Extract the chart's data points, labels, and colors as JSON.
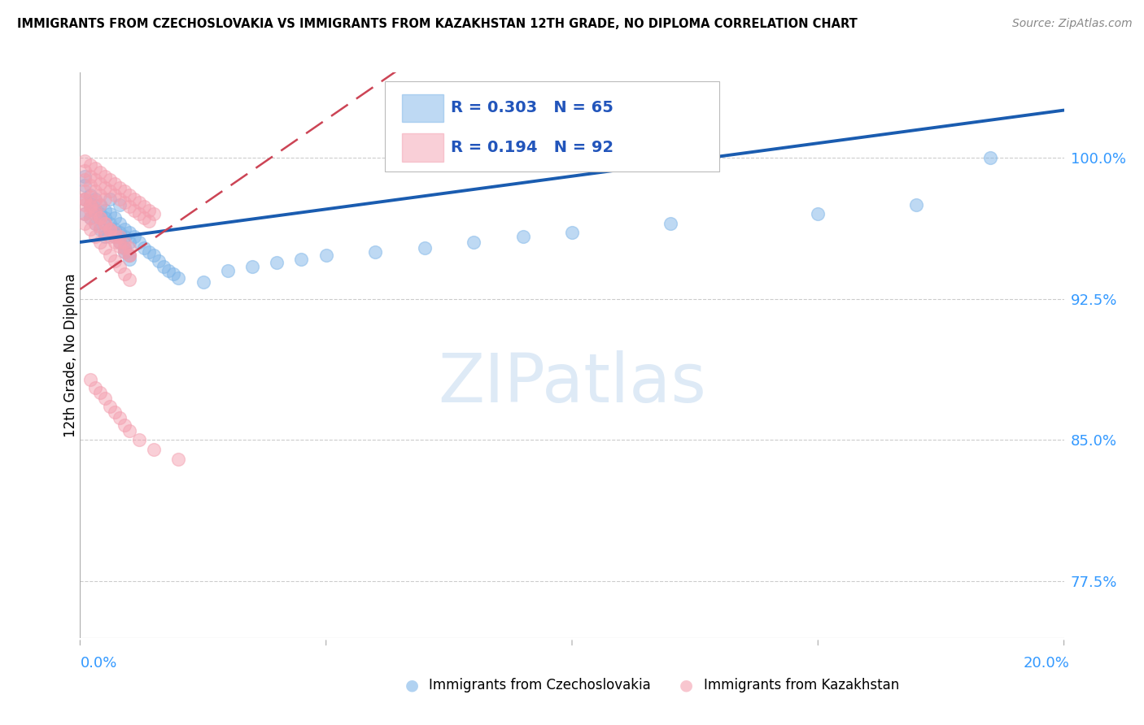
{
  "title": "IMMIGRANTS FROM CZECHOSLOVAKIA VS IMMIGRANTS FROM KAZAKHSTAN 12TH GRADE, NO DIPLOMA CORRELATION CHART",
  "source": "Source: ZipAtlas.com",
  "ylabel": "12th Grade, No Diploma",
  "legend1_r": "0.303",
  "legend1_n": "65",
  "legend2_r": "0.194",
  "legend2_n": "92",
  "legend1_label": "Immigrants from Czechoslovakia",
  "legend2_label": "Immigrants from Kazakhstan",
  "color_czech": "#7EB5E8",
  "color_kazakh": "#F4A0B0",
  "trend_color_czech": "#1A5CB0",
  "trend_color_kazakh": "#CC4455",
  "background_color": "#FFFFFF",
  "xmin": 0.0,
  "xmax": 0.2,
  "ymin": 0.745,
  "ymax": 1.045,
  "ytick_vals": [
    1.0,
    0.925,
    0.85,
    0.775
  ],
  "ytick_labels": [
    "100.0%",
    "92.5%",
    "85.0%",
    "77.5%"
  ],
  "czech_x": [
    0.001,
    0.001,
    0.002,
    0.002,
    0.003,
    0.003,
    0.004,
    0.004,
    0.005,
    0.005,
    0.006,
    0.006,
    0.007,
    0.007,
    0.008,
    0.008,
    0.009,
    0.009,
    0.01,
    0.01,
    0.001,
    0.002,
    0.003,
    0.004,
    0.005,
    0.006,
    0.007,
    0.008,
    0.009,
    0.01,
    0.011,
    0.012,
    0.013,
    0.014,
    0.015,
    0.016,
    0.017,
    0.018,
    0.019,
    0.02,
    0.025,
    0.03,
    0.035,
    0.04,
    0.045,
    0.05,
    0.06,
    0.07,
    0.08,
    0.09,
    0.1,
    0.12,
    0.15,
    0.17,
    0.185,
    0.001,
    0.002,
    0.003,
    0.004,
    0.005,
    0.006,
    0.007,
    0.008,
    0.009,
    0.01
  ],
  "czech_y": [
    0.97,
    0.99,
    0.975,
    0.968,
    0.972,
    0.965,
    0.968,
    0.962,
    0.96,
    0.958,
    0.978,
    0.962,
    0.96,
    0.958,
    0.975,
    0.955,
    0.952,
    0.95,
    0.948,
    0.946,
    0.985,
    0.98,
    0.978,
    0.975,
    0.972,
    0.97,
    0.968,
    0.965,
    0.962,
    0.96,
    0.958,
    0.955,
    0.952,
    0.95,
    0.948,
    0.945,
    0.942,
    0.94,
    0.938,
    0.936,
    0.934,
    0.94,
    0.942,
    0.944,
    0.946,
    0.948,
    0.95,
    0.952,
    0.955,
    0.958,
    0.96,
    0.965,
    0.97,
    0.975,
    1.0,
    0.978,
    0.975,
    0.972,
    0.97,
    0.968,
    0.965,
    0.962,
    0.96,
    0.958,
    0.955
  ],
  "kazakh_x": [
    0.001,
    0.001,
    0.001,
    0.001,
    0.001,
    0.002,
    0.002,
    0.002,
    0.002,
    0.002,
    0.003,
    0.003,
    0.003,
    0.003,
    0.004,
    0.004,
    0.004,
    0.004,
    0.005,
    0.005,
    0.005,
    0.006,
    0.006,
    0.007,
    0.007,
    0.008,
    0.008,
    0.009,
    0.009,
    0.01,
    0.01,
    0.011,
    0.011,
    0.012,
    0.012,
    0.013,
    0.013,
    0.014,
    0.014,
    0.015,
    0.001,
    0.001,
    0.002,
    0.002,
    0.003,
    0.003,
    0.004,
    0.004,
    0.005,
    0.005,
    0.006,
    0.006,
    0.007,
    0.007,
    0.008,
    0.008,
    0.009,
    0.009,
    0.01,
    0.01,
    0.001,
    0.002,
    0.003,
    0.004,
    0.005,
    0.006,
    0.007,
    0.008,
    0.009,
    0.01,
    0.001,
    0.002,
    0.003,
    0.004,
    0.005,
    0.006,
    0.007,
    0.008,
    0.009,
    0.01,
    0.002,
    0.003,
    0.004,
    0.005,
    0.006,
    0.007,
    0.008,
    0.009,
    0.01,
    0.012,
    0.015,
    0.02
  ],
  "kazakh_y": [
    0.998,
    0.993,
    0.988,
    0.982,
    0.978,
    0.996,
    0.99,
    0.985,
    0.979,
    0.974,
    0.994,
    0.988,
    0.982,
    0.977,
    0.992,
    0.986,
    0.98,
    0.975,
    0.99,
    0.984,
    0.978,
    0.988,
    0.982,
    0.986,
    0.98,
    0.984,
    0.978,
    0.982,
    0.976,
    0.98,
    0.974,
    0.978,
    0.972,
    0.976,
    0.97,
    0.974,
    0.968,
    0.972,
    0.966,
    0.97,
    0.975,
    0.97,
    0.972,
    0.968,
    0.97,
    0.965,
    0.968,
    0.963,
    0.965,
    0.96,
    0.962,
    0.958,
    0.96,
    0.955,
    0.958,
    0.953,
    0.955,
    0.95,
    0.952,
    0.948,
    0.965,
    0.962,
    0.958,
    0.955,
    0.952,
    0.948,
    0.945,
    0.942,
    0.938,
    0.935,
    0.978,
    0.975,
    0.972,
    0.968,
    0.965,
    0.962,
    0.958,
    0.955,
    0.952,
    0.948,
    0.882,
    0.878,
    0.875,
    0.872,
    0.868,
    0.865,
    0.862,
    0.858,
    0.855,
    0.85,
    0.845,
    0.84
  ]
}
